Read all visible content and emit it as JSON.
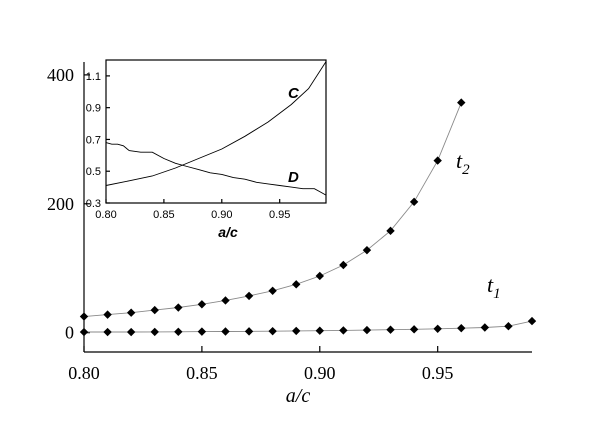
{
  "chart_data": [
    {
      "type": "line",
      "xlabel": "a/c",
      "ylabel": "",
      "xlim": [
        0.8,
        0.99
      ],
      "ylim": [
        -30,
        420
      ],
      "xticks": [
        "0.80",
        "0.85",
        "0.90",
        "0.95"
      ],
      "yticks": [
        "0",
        "200",
        "400"
      ],
      "marker": "diamond",
      "grid": false,
      "series": [
        {
          "name": "t2",
          "label_main": "t",
          "label_sub": "2",
          "color": "#000000",
          "line_color": "#8a8a8a",
          "x": [
            0.8,
            0.81,
            0.82,
            0.83,
            0.84,
            0.85,
            0.86,
            0.87,
            0.88,
            0.89,
            0.9,
            0.91,
            0.92,
            0.93,
            0.94,
            0.95,
            0.96
          ],
          "y": [
            25,
            28,
            31,
            35,
            39,
            44,
            50,
            57,
            65,
            75,
            88,
            105,
            128,
            158,
            203,
            267,
            357
          ]
        },
        {
          "name": "t1",
          "label_main": "t",
          "label_sub": "1",
          "color": "#000000",
          "line_color": "#8a8a8a",
          "x": [
            0.8,
            0.81,
            0.82,
            0.83,
            0.84,
            0.85,
            0.86,
            0.87,
            0.88,
            0.89,
            0.9,
            0.91,
            0.92,
            0.93,
            0.94,
            0.95,
            0.96,
            0.97,
            0.98,
            0.99
          ],
          "y": [
            1,
            1,
            1,
            1.2,
            1.4,
            1.6,
            1.8,
            2,
            2.3,
            2.7,
            3,
            3.5,
            4,
            4.6,
            5.2,
            6,
            7,
            8,
            10,
            18
          ]
        }
      ]
    },
    {
      "type": "line",
      "inset": true,
      "xlabel": "a/c",
      "ylabel": "",
      "xlim": [
        0.8,
        0.99
      ],
      "ylim": [
        0.3,
        1.2
      ],
      "xticks": [
        "0.80",
        "0.85",
        "0.90",
        "0.95"
      ],
      "yticks": [
        "0.3",
        "0.5",
        "0.7",
        "0.9",
        "1.1"
      ],
      "grid": false,
      "series": [
        {
          "name": "C",
          "color": "#000000",
          "x": [
            0.8,
            0.82,
            0.84,
            0.86,
            0.88,
            0.9,
            0.92,
            0.94,
            0.96,
            0.975,
            0.99
          ],
          "y": [
            0.41,
            0.44,
            0.47,
            0.52,
            0.58,
            0.64,
            0.72,
            0.81,
            0.92,
            1.02,
            1.19
          ]
        },
        {
          "name": "D",
          "color": "#000000",
          "x": [
            0.8,
            0.805,
            0.81,
            0.815,
            0.82,
            0.83,
            0.835,
            0.84,
            0.85,
            0.86,
            0.87,
            0.88,
            0.89,
            0.9,
            0.91,
            0.92,
            0.93,
            0.94,
            0.95,
            0.96,
            0.97,
            0.98,
            0.985,
            0.99
          ],
          "y": [
            0.68,
            0.67,
            0.67,
            0.66,
            0.63,
            0.62,
            0.62,
            0.62,
            0.58,
            0.55,
            0.53,
            0.51,
            0.49,
            0.48,
            0.46,
            0.45,
            0.43,
            0.42,
            0.41,
            0.4,
            0.39,
            0.39,
            0.37,
            0.35
          ]
        }
      ]
    }
  ]
}
